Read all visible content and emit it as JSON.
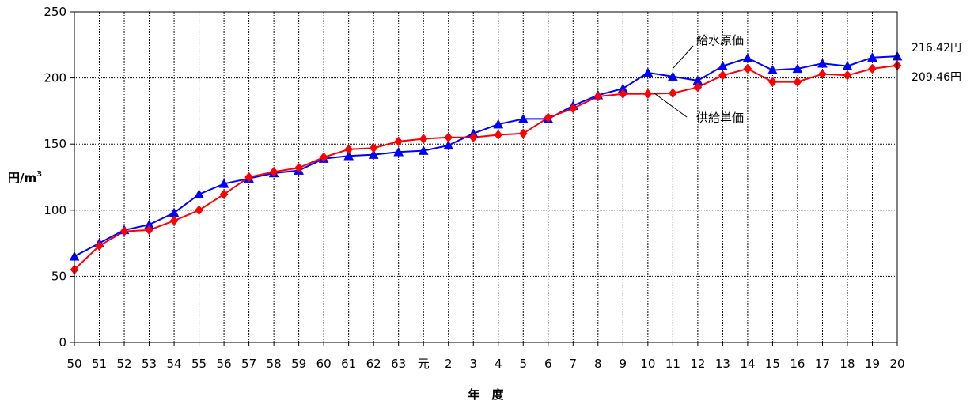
{
  "chart_data": {
    "type": "line",
    "xlabel": "年　度",
    "ylabel": "円/m",
    "ylabel_sup": "3",
    "ylim": [
      0,
      250
    ],
    "yticks": [
      0,
      50,
      100,
      150,
      200,
      250
    ],
    "grid": true,
    "categories": [
      "50",
      "51",
      "52",
      "53",
      "54",
      "55",
      "56",
      "57",
      "58",
      "59",
      "60",
      "61",
      "62",
      "63",
      "元",
      "2",
      "3",
      "4",
      "5",
      "6",
      "7",
      "8",
      "9",
      "10",
      "11",
      "12",
      "13",
      "14",
      "15",
      "16",
      "17",
      "18",
      "19",
      "20"
    ],
    "series": [
      {
        "name": "給水原価",
        "color": "#0000ff",
        "marker": "triangle",
        "values": [
          65,
          75,
          85,
          89,
          98,
          112,
          120,
          124,
          128,
          130,
          139,
          141,
          142,
          144,
          145,
          149,
          158,
          165,
          169,
          169,
          179,
          187,
          192,
          204,
          201,
          198,
          209,
          215,
          206,
          207,
          211,
          209,
          215.5,
          216.42
        ],
        "end_label": "216.42円"
      },
      {
        "name": "供給単価",
        "color": "#ff0000",
        "marker": "diamond",
        "values": [
          55,
          73,
          84,
          85,
          92,
          100,
          112,
          125,
          129,
          132,
          140,
          146,
          147,
          152,
          154,
          155,
          155,
          157,
          158,
          170,
          177,
          186,
          188,
          188,
          188.5,
          193,
          202,
          207,
          197,
          197,
          203,
          202,
          207,
          209.46
        ],
        "end_label": "209.46円"
      }
    ]
  }
}
